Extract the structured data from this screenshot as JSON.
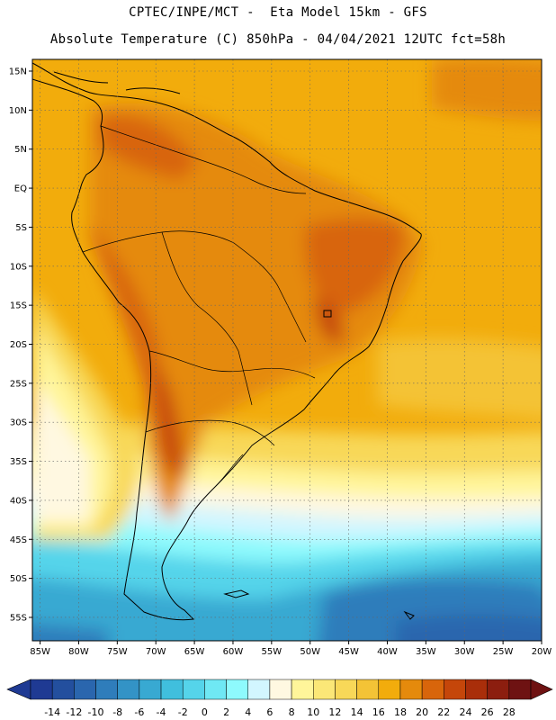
{
  "header": {
    "line1": "CPTEC/INPE/MCT -  Eta Model 15km - GFS",
    "line2": "Absolute Temperature (C) 850hPa - 04/04/2021 12UTC fct=58h"
  },
  "map": {
    "lon_range": [
      -86,
      -20
    ],
    "lat_range": [
      -58,
      16.5
    ],
    "lon_ticks": [
      {
        "value": -85,
        "label": "85W"
      },
      {
        "value": -80,
        "label": "80W"
      },
      {
        "value": -75,
        "label": "75W"
      },
      {
        "value": -70,
        "label": "70W"
      },
      {
        "value": -65,
        "label": "65W"
      },
      {
        "value": -60,
        "label": "60W"
      },
      {
        "value": -55,
        "label": "55W"
      },
      {
        "value": -50,
        "label": "50W"
      },
      {
        "value": -45,
        "label": "45W"
      },
      {
        "value": -40,
        "label": "40W"
      },
      {
        "value": -35,
        "label": "35W"
      },
      {
        "value": -30,
        "label": "30W"
      },
      {
        "value": -25,
        "label": "25W"
      },
      {
        "value": -20,
        "label": "20W"
      }
    ],
    "lat_ticks": [
      {
        "value": 15,
        "label": "15N"
      },
      {
        "value": 10,
        "label": "10N"
      },
      {
        "value": 5,
        "label": "5N"
      },
      {
        "value": 0,
        "label": "EQ"
      },
      {
        "value": -5,
        "label": "5S"
      },
      {
        "value": -10,
        "label": "10S"
      },
      {
        "value": -15,
        "label": "15S"
      },
      {
        "value": -20,
        "label": "20S"
      },
      {
        "value": -25,
        "label": "25S"
      },
      {
        "value": -30,
        "label": "30S"
      },
      {
        "value": -35,
        "label": "35S"
      },
      {
        "value": -40,
        "label": "40S"
      },
      {
        "value": -45,
        "label": "45S"
      },
      {
        "value": -50,
        "label": "50S"
      },
      {
        "value": -55,
        "label": "55S"
      }
    ],
    "grid_lines": true,
    "grid_style": "dotted"
  },
  "colorbar": {
    "labels": [
      "-14",
      "-12",
      "-10",
      "-8",
      "-6",
      "-4",
      "-2",
      "0",
      "2",
      "4",
      "6",
      "8",
      "10",
      "12",
      "14",
      "16",
      "18",
      "20",
      "22",
      "24",
      "26",
      "28"
    ],
    "colors": [
      "#1f3a93",
      "#234f9e",
      "#2a66ae",
      "#2f7dbb",
      "#3393c6",
      "#38a9d2",
      "#40bfdd",
      "#55d4ea",
      "#6fe8f4",
      "#8efafd",
      "#d2f6ff",
      "#fff8e1",
      "#fff59a",
      "#fbe777",
      "#f8d858",
      "#f4c336",
      "#f2ac0c",
      "#e58a0c",
      "#d8650b",
      "#c5460a",
      "#a92e0a",
      "#8c1e0f",
      "#6e1212"
    ],
    "low_arrow_color": "#1f3a93",
    "high_arrow_color": "#6e1212"
  }
}
